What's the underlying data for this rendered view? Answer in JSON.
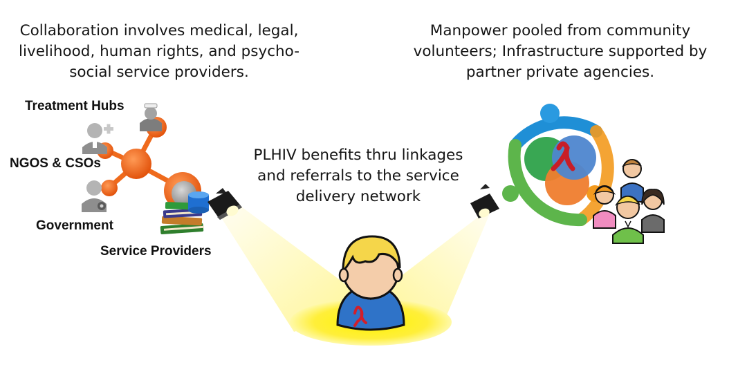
{
  "captions": {
    "left": "Collaboration involves medical, legal, livelihood, human rights, and psycho-social service providers.",
    "right": "Manpower pooled from community volunteers; Infrastructure supported by partner private agencies.",
    "center": "PLHIV benefits thru linkages and referrals to the service delivery network"
  },
  "network_labels": {
    "treatment_hubs": "Treatment Hubs",
    "ngos_csos": "NGOS & CSOs",
    "government": "Government",
    "service_providers": "Service Providers"
  },
  "colors": {
    "network_orange": "#ef6a1c",
    "spotlight_yellow": "#fffb80",
    "ribbon_red": "#d21f2a",
    "ring_blue": "#1f8fd6",
    "ring_green": "#5db54b",
    "ring_orange": "#f39a1e"
  }
}
